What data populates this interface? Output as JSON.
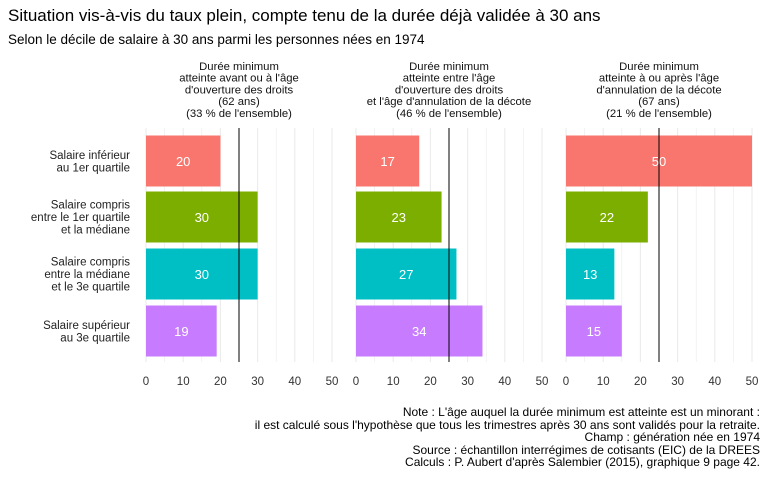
{
  "title": "Situation vis-à-vis du taux plein, compte tenu de la durée déjà validée à 30 ans",
  "subtitle": "Selon le décile de salaire à 30 ans parmi les personnes nées en 1974",
  "colors": {
    "series": [
      "#F8766D",
      "#7CAE00",
      "#00BFC4",
      "#C77CFF"
    ],
    "grid": "#ebebeb",
    "reference_line": "#000000",
    "bar_label": "#ffffff"
  },
  "chart_data": [
    {
      "type": "bar",
      "orientation": "horizontal",
      "panel_title": [
        "Durée minimum",
        "atteinte avant ou à l'âge",
        "d'ouverture des droits",
        "(62 ans)",
        "(33 % de l'ensemble)"
      ],
      "categories": [
        [
          "Salaire inférieur",
          "au 1er quartile"
        ],
        [
          "Salaire compris",
          "entre le 1er quartile",
          "et la médiane"
        ],
        [
          "Salaire compris",
          "entre la médiane",
          "et le 3e quartile"
        ],
        [
          "Salaire supérieur",
          "au 3e quartile"
        ]
      ],
      "values": [
        20,
        30,
        30,
        19
      ],
      "xlim": [
        0,
        50
      ],
      "xticks": [
        "0",
        "10",
        "20",
        "30",
        "40",
        "50"
      ],
      "reference_line": 25,
      "grid": true
    },
    {
      "type": "bar",
      "orientation": "horizontal",
      "panel_title": [
        "Durée minimum",
        "atteinte entre l'âge",
        "d'ouverture des droits",
        "et l'âge d'annulation de la décote",
        "(46 % de l'ensemble)"
      ],
      "categories": [
        [
          "Salaire inférieur",
          "au 1er quartile"
        ],
        [
          "Salaire compris",
          "entre le 1er quartile",
          "et la médiane"
        ],
        [
          "Salaire compris",
          "entre la médiane",
          "et le 3e quartile"
        ],
        [
          "Salaire supérieur",
          "au 3e quartile"
        ]
      ],
      "values": [
        17,
        23,
        27,
        34
      ],
      "xlim": [
        0,
        50
      ],
      "xticks": [
        "0",
        "10",
        "20",
        "30",
        "40",
        "50"
      ],
      "reference_line": 25,
      "grid": true
    },
    {
      "type": "bar",
      "orientation": "horizontal",
      "panel_title": [
        "Durée minimum",
        "atteinte à ou après l'âge",
        "d'annulation de la décote",
        "(67 ans)",
        "(21 % de l'ensemble)"
      ],
      "categories": [
        [
          "Salaire inférieur",
          "au 1er quartile"
        ],
        [
          "Salaire compris",
          "entre le 1er quartile",
          "et la médiane"
        ],
        [
          "Salaire compris",
          "entre la médiane",
          "et le 3e quartile"
        ],
        [
          "Salaire supérieur",
          "au 3e quartile"
        ]
      ],
      "values": [
        50,
        22,
        13,
        15
      ],
      "xlim": [
        0,
        50
      ],
      "xticks": [
        "0",
        "10",
        "20",
        "30",
        "40",
        "50"
      ],
      "reference_line": 25,
      "grid": true
    }
  ],
  "notes": [
    "Note : L'âge auquel la durée minimum est atteinte est un minorant :",
    "il est calculé sous l'hypothèse que tous les trimestres après 30 ans sont validés pour la retraite.",
    "Champ : génération née en 1974",
    "Source : échantillon interrégimes de cotisants (EIC) de la DREES",
    "Calculs : P. Aubert d'après Salembier (2015), graphique 9 page 42."
  ]
}
